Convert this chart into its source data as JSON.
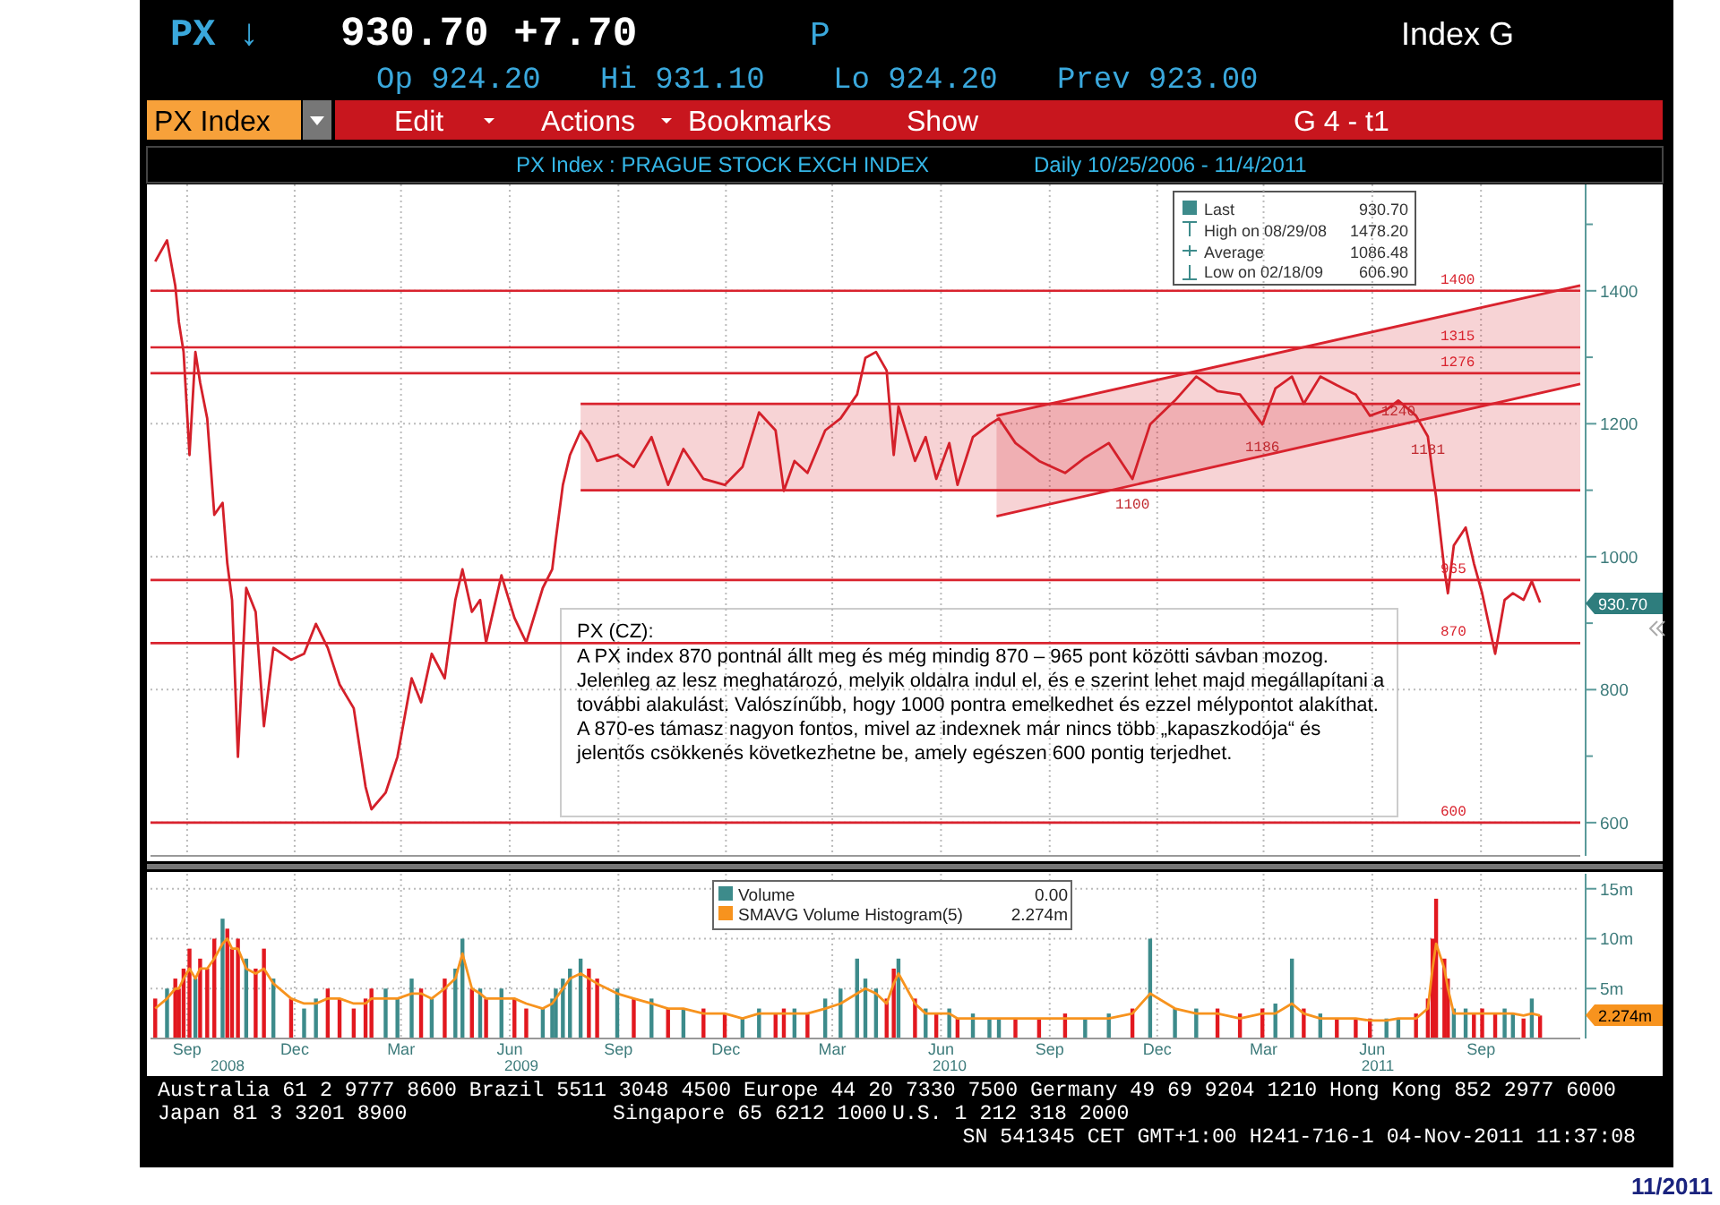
{
  "chart_data": [
    {
      "type": "line",
      "title": "PX Index  :  PRAGUE STOCK EXCH INDEX",
      "subtitle": "Daily   10/25/2006 - 11/4/2011",
      "x": [
        "2008-08-19",
        "2008-08-29",
        "2008-09-05",
        "2008-09-08",
        "2008-09-12",
        "2008-09-17",
        "2008-09-22",
        "2008-09-26",
        "2008-10-02",
        "2008-10-08",
        "2008-10-15",
        "2008-10-19",
        "2008-10-23",
        "2008-10-28",
        "2008-11-04",
        "2008-11-12",
        "2008-11-19",
        "2008-11-27",
        "2008-12-12",
        "2008-12-23",
        "2009-01-02",
        "2009-01-12",
        "2009-01-22",
        "2009-02-03",
        "2009-02-13",
        "2009-02-18",
        "2009-03-02",
        "2009-03-12",
        "2009-03-24",
        "2009-04-01",
        "2009-04-10",
        "2009-04-21",
        "2009-04-30",
        "2009-05-06",
        "2009-05-14",
        "2009-05-21",
        "2009-05-26",
        "2009-06-08",
        "2009-06-19",
        "2009-06-29",
        "2009-07-13",
        "2009-07-21",
        "2009-07-24",
        "2009-07-30",
        "2009-08-05",
        "2009-08-14",
        "2009-08-21",
        "2009-08-28",
        "2009-09-14",
        "2009-09-28",
        "2009-10-13",
        "2009-10-27",
        "2009-11-09",
        "2009-11-26",
        "2009-12-14",
        "2009-12-29",
        "2010-01-12",
        "2010-01-26",
        "2010-02-02",
        "2010-02-11",
        "2010-02-22",
        "2010-03-09",
        "2010-03-22",
        "2010-04-05",
        "2010-04-12",
        "2010-04-21",
        "2010-04-30",
        "2010-05-06",
        "2010-05-10",
        "2010-05-24",
        "2010-06-02",
        "2010-06-11",
        "2010-06-22",
        "2010-06-29",
        "2010-07-12",
        "2010-07-26",
        "2010-08-03",
        "2010-08-17",
        "2010-09-06",
        "2010-09-28",
        "2010-10-15",
        "2010-11-04",
        "2010-11-24",
        "2010-12-09",
        "2010-12-30",
        "2011-01-17",
        "2011-02-04",
        "2011-02-23",
        "2011-03-14",
        "2011-03-25",
        "2011-04-08",
        "2011-04-18",
        "2011-05-02",
        "2011-05-16",
        "2011-06-01",
        "2011-06-13",
        "2011-06-27",
        "2011-07-07",
        "2011-07-22",
        "2011-08-01",
        "2011-08-05",
        "2011-08-08",
        "2011-08-15",
        "2011-08-18",
        "2011-08-23",
        "2011-09-02",
        "2011-09-09",
        "2011-09-16",
        "2011-09-27",
        "2011-10-05",
        "2011-10-12",
        "2011-10-21",
        "2011-10-28",
        "2011-11-04"
      ],
      "series": [
        {
          "color": "#d4202a",
          "values": [
            1444,
            1476,
            1407,
            1353,
            1308,
            1153,
            1308,
            1262,
            1208,
            1063,
            1081,
            990,
            935,
            699,
            953,
            917,
            745,
            863,
            845,
            854,
            899,
            863,
            808,
            772,
            654,
            620,
            645,
            699,
            817,
            781,
            854,
            817,
            935,
            981,
            917,
            935,
            871,
            972,
            908,
            871,
            953,
            981,
            1026,
            1108,
            1153,
            1189,
            1171,
            1144,
            1153,
            1135,
            1180,
            1108,
            1162,
            1117,
            1108,
            1135,
            1217,
            1190,
            1099,
            1144,
            1126,
            1190,
            1208,
            1244,
            1299,
            1308,
            1280,
            1153,
            1226,
            1144,
            1180,
            1117,
            1171,
            1108,
            1180,
            1199,
            1208,
            1171,
            1144,
            1126,
            1149,
            1171,
            1117,
            1199,
            1235,
            1271,
            1249,
            1244,
            1199,
            1253,
            1271,
            1230,
            1271,
            1258,
            1244,
            1212,
            1221,
            1235,
            1212,
            1181,
            1126,
            1090,
            981,
            945,
            1017,
            1044,
            990,
            945,
            854,
            935,
            945,
            935,
            963,
            931
          ]
        },
        {
          "type": "line",
          "color": "#d9232e",
          "x": [
            "2009-08-14",
            "2011-12-08"
          ],
          "values": [
            1230,
            1230
          ],
          "lower": [
            1100,
            1100
          ],
          "upper": [
            1230,
            1230
          ]
        },
        {
          "type": "line",
          "color": "#d9232e",
          "x": [
            "2009-08-14",
            "2011-12-08"
          ],
          "values": [
            1100,
            1100
          ]
        },
        {
          "type": "line",
          "color": "#d9232e",
          "x": [
            "2010-08-01",
            "2011-12-08"
          ],
          "values": [
            1212,
            1408
          ],
          "lower": [
            1061,
            1260
          ],
          "upper": [
            1212,
            1408
          ]
        },
        {
          "type": "line",
          "color": "#d9232e",
          "x": [
            "2010-08-01",
            "2011-12-08"
          ],
          "values": [
            1061,
            1260
          ]
        }
      ],
      "xlim": [
        "2008-08-15",
        "2011-12-08"
      ],
      "xticks": [
        {
          "value": "2008-09-15",
          "label": null
        },
        {
          "value": "2008-12-15",
          "label": null
        },
        {
          "value": "2009-03-15",
          "label": null
        },
        {
          "value": "2009-06-15",
          "label": null
        },
        {
          "value": "2009-09-15",
          "label": null
        },
        {
          "value": "2009-12-15",
          "label": null
        },
        {
          "value": "2010-03-15",
          "label": null
        },
        {
          "value": "2010-06-15",
          "label": null
        },
        {
          "value": "2010-09-15",
          "label": null
        },
        {
          "value": "2010-12-15",
          "label": null
        },
        {
          "value": "2011-03-15",
          "label": null
        },
        {
          "value": "2011-06-15",
          "label": null
        },
        {
          "value": "2011-09-15",
          "label": null
        }
      ],
      "ylim": [
        550,
        1560
      ],
      "yticks": [
        600,
        {
          "value": 700,
          "label": null
        },
        800,
        {
          "value": 900,
          "label": null
        },
        1000,
        {
          "value": 1100,
          "label": null
        },
        1200,
        {
          "value": 1300,
          "label": null
        },
        1400,
        {
          "value": 1500,
          "label": null
        }
      ],
      "tick_labels": "y",
      "grid": true,
      "legend": false,
      "ref_lines": [
        {
          "axis": "y",
          "value": 1400,
          "label": "1400",
          "color": "#d9232e"
        },
        {
          "axis": "y",
          "value": 1315,
          "label": "1315",
          "color": "#d9232e"
        },
        {
          "axis": "y",
          "value": 1276,
          "label": "1276",
          "color": "#d9232e"
        },
        {
          "axis": "y",
          "value": 965,
          "label": "965",
          "color": "#d9232e"
        },
        {
          "axis": "y",
          "value": 870,
          "label": "870",
          "color": "#d9232e"
        },
        {
          "axis": "y",
          "value": 600,
          "label": "600",
          "color": "#d9232e"
        }
      ],
      "annotations": [
        "PX ↓",
        "930.70 +7.70",
        "P",
        "Index G",
        "Op 924.20",
        "Hi 931.10",
        "Lo 924.20",
        "Prev 923.00",
        "PX Index",
        "Edit",
        "Actions",
        "Bookmarks",
        "Show",
        "G 4 - t1",
        "Last",
        "930.70",
        "High on 08/29/08",
        "1478.20",
        "Average",
        "1086.48",
        "Low on 02/18/09",
        "606.90",
        "PX (CZ):",
        "A PX index 870 pontnál állt meg és még mindig 870 – 965 pont közötti sávban mozog. Jelenleg az lesz meghatározó, melyik oldalra indul el, és e szerint lehet majd megállapítani a további alakulást. Valószínűbb, hogy 1000 pontra emelkedhet és ezzel mélypontot alakíthat. A 870-es támasz nagyon fontos, mivel az indexnek már nincs több „kapaszkodója“ és jelentős csökkenés következhetne be, amely egészen 600 pontig terjedhet.",
        "930.70",
        {
          "text": "1240",
          "x": "2011-07-07",
          "y": 1240
        },
        {
          "text": "1186",
          "x": "2011-03-14",
          "y": 1186
        },
        {
          "text": "1181",
          "x": "2011-08-01",
          "y": 1181
        },
        {
          "text": "1100",
          "x": "2010-11-24",
          "y": 1100
        }
      ]
    },
    {
      "type": "bar",
      "x": [
        "2008-08-19",
        "2008-08-29",
        "2008-09-05",
        "2008-09-08",
        "2008-09-12",
        "2008-09-17",
        "2008-09-22",
        "2008-09-26",
        "2008-10-02",
        "2008-10-08",
        "2008-10-15",
        "2008-10-19",
        "2008-10-23",
        "2008-10-28",
        "2008-11-04",
        "2008-11-12",
        "2008-11-19",
        "2008-11-27",
        "2008-12-12",
        "2008-12-23",
        "2009-01-02",
        "2009-01-12",
        "2009-01-22",
        "2009-02-03",
        "2009-02-13",
        "2009-02-18",
        "2009-03-02",
        "2009-03-12",
        "2009-03-24",
        "2009-04-01",
        "2009-04-10",
        "2009-04-21",
        "2009-04-30",
        "2009-05-06",
        "2009-05-14",
        "2009-05-21",
        "2009-05-26",
        "2009-06-08",
        "2009-06-19",
        "2009-06-29",
        "2009-07-13",
        "2009-07-21",
        "2009-07-24",
        "2009-07-30",
        "2009-08-05",
        "2009-08-14",
        "2009-08-21",
        "2009-08-28",
        "2009-09-14",
        "2009-09-28",
        "2009-10-13",
        "2009-10-27",
        "2009-11-09",
        "2009-11-26",
        "2009-12-14",
        "2009-12-29",
        "2010-01-12",
        "2010-01-26",
        "2010-02-02",
        "2010-02-11",
        "2010-02-22",
        "2010-03-09",
        "2010-03-22",
        "2010-04-05",
        "2010-04-12",
        "2010-04-21",
        "2010-04-30",
        "2010-05-06",
        "2010-05-10",
        "2010-05-24",
        "2010-06-02",
        "2010-06-11",
        "2010-06-22",
        "2010-06-29",
        "2010-07-12",
        "2010-07-26",
        "2010-08-03",
        "2010-08-17",
        "2010-09-06",
        "2010-09-28",
        "2010-10-15",
        "2010-11-04",
        "2010-11-24",
        "2010-12-09",
        "2010-12-30",
        "2011-01-17",
        "2011-02-04",
        "2011-02-23",
        "2011-03-14",
        "2011-03-25",
        "2011-04-08",
        "2011-04-18",
        "2011-05-02",
        "2011-05-16",
        "2011-06-01",
        "2011-06-13",
        "2011-06-27",
        "2011-07-07",
        "2011-07-22",
        "2011-08-01",
        "2011-08-05",
        "2011-08-08",
        "2011-08-15",
        "2011-08-18",
        "2011-08-23",
        "2011-09-02",
        "2011-09-09",
        "2011-09-16",
        "2011-09-27",
        "2011-10-05",
        "2011-10-12",
        "2011-10-21",
        "2011-10-28",
        "2011-11-04"
      ],
      "series": [
        {
          "name": "Volume",
          "color": "#3d8b8b",
          "values": [
            4,
            5,
            6,
            5,
            7,
            9,
            6,
            8,
            7,
            10,
            12,
            11,
            9,
            10,
            8,
            7,
            9,
            6,
            4,
            3,
            4,
            5,
            4,
            3,
            4,
            5,
            5,
            4,
            6,
            5,
            4,
            6,
            7,
            10,
            5,
            5,
            4,
            5,
            4,
            3,
            3,
            4,
            5,
            6,
            7,
            8,
            7,
            6,
            5,
            4,
            4,
            3,
            3,
            3,
            2.5,
            2,
            3,
            2.5,
            3,
            3,
            2.5,
            4,
            5,
            8,
            6,
            5,
            4,
            7,
            8,
            4,
            3,
            2.5,
            3,
            2,
            2.5,
            2,
            2,
            2,
            2,
            2.5,
            2,
            2.5,
            3,
            10,
            3,
            3,
            3,
            2.5,
            3,
            3.5,
            8,
            3,
            2.5,
            2,
            2,
            2,
            2,
            2,
            2.5,
            4,
            10,
            14,
            8,
            6,
            3,
            3,
            2.5,
            3,
            2.5,
            3,
            2.5,
            2,
            4,
            2.3
          ],
          "colors": [
            "#e2181f",
            "#3d8b8b",
            "#e2181f",
            "#e2181f",
            "#e2181f",
            "#e2181f",
            "#3d8b8b",
            "#e2181f",
            "#e2181f",
            "#e2181f",
            "#3d8b8b",
            "#e2181f",
            "#e2181f",
            "#e2181f",
            "#3d8b8b",
            "#e2181f",
            "#e2181f",
            "#3d8b8b",
            "#e2181f",
            "#3d8b8b",
            "#3d8b8b",
            "#e2181f",
            "#e2181f",
            "#e2181f",
            "#e2181f",
            "#e2181f",
            "#3d8b8b",
            "#3d8b8b",
            "#3d8b8b",
            "#e2181f",
            "#3d8b8b",
            "#e2181f",
            "#3d8b8b",
            "#3d8b8b",
            "#e2181f",
            "#3d8b8b",
            "#e2181f",
            "#3d8b8b",
            "#e2181f",
            "#e2181f",
            "#3d8b8b",
            "#3d8b8b",
            "#3d8b8b",
            "#3d8b8b",
            "#3d8b8b",
            "#3d8b8b",
            "#e2181f",
            "#e2181f",
            "#3d8b8b",
            "#e2181f",
            "#3d8b8b",
            "#e2181f",
            "#3d8b8b",
            "#e2181f",
            "#e2181f",
            "#3d8b8b",
            "#3d8b8b",
            "#e2181f",
            "#e2181f",
            "#3d8b8b",
            "#e2181f",
            "#3d8b8b",
            "#3d8b8b",
            "#3d8b8b",
            "#3d8b8b",
            "#3d8b8b",
            "#e2181f",
            "#e2181f",
            "#3d8b8b",
            "#e2181f",
            "#3d8b8b",
            "#e2181f",
            "#3d8b8b",
            "#e2181f",
            "#3d8b8b",
            "#3d8b8b",
            "#3d8b8b",
            "#e2181f",
            "#e2181f",
            "#e2181f",
            "#3d8b8b",
            "#3d8b8b",
            "#e2181f",
            "#3d8b8b",
            "#3d8b8b",
            "#3d8b8b",
            "#e2181f",
            "#e2181f",
            "#e2181f",
            "#3d8b8b",
            "#3d8b8b",
            "#e2181f",
            "#3d8b8b",
            "#e2181f",
            "#e2181f",
            "#e2181f",
            "#3d8b8b",
            "#3d8b8b",
            "#e2181f",
            "#e2181f",
            "#e2181f",
            "#e2181f",
            "#e2181f",
            "#e2181f",
            "#3d8b8b",
            "#3d8b8b",
            "#e2181f",
            "#e2181f",
            "#e2181f",
            "#3d8b8b",
            "#3d8b8b",
            "#e2181f",
            "#3d8b8b",
            "#e2181f"
          ]
        },
        {
          "type": "line",
          "name": "SMAVG Volume Histogram(5)",
          "color": "#f7931e",
          "values": [
            3,
            4,
            5,
            5,
            6,
            7,
            6,
            7,
            7,
            8,
            9.5,
            10,
            9,
            9,
            7,
            6.5,
            7,
            5.5,
            4,
            3.5,
            3.5,
            4,
            4,
            3.5,
            3.5,
            4,
            4,
            4,
            4.5,
            4.5,
            4,
            5,
            6,
            8.5,
            5,
            4.5,
            4,
            4,
            4,
            3.5,
            3,
            3.5,
            4,
            5,
            6,
            6.5,
            6,
            5.5,
            4.5,
            4,
            3.5,
            3,
            3,
            2.5,
            2.5,
            2,
            2.5,
            2.5,
            2.5,
            2.5,
            2.5,
            3,
            3.5,
            4.5,
            5,
            4.5,
            3.5,
            5.5,
            6.5,
            3.5,
            2.5,
            2.5,
            2.5,
            2,
            2,
            2,
            2,
            2,
            2,
            2,
            2,
            2,
            2.5,
            4.5,
            3,
            2.5,
            2.5,
            2,
            2.5,
            2.5,
            3.5,
            2.5,
            2,
            2,
            2,
            1.8,
            1.8,
            2,
            2,
            3,
            7,
            9.5,
            7,
            5,
            2.5,
            2.5,
            2.5,
            2.5,
            2.5,
            2.5,
            2.5,
            2.3,
            2.5,
            2.3
          ]
        }
      ],
      "xlim": [
        "2008-08-15",
        "2011-12-08"
      ],
      "xticks": [
        {
          "value": "2008-09-15",
          "label": "Sep"
        },
        {
          "value": "2008-12-15",
          "label": "Dec"
        },
        {
          "value": "2009-03-15",
          "label": "Mar"
        },
        {
          "value": "2009-06-15",
          "label": "Jun"
        },
        {
          "value": "2009-09-15",
          "label": "Sep"
        },
        {
          "value": "2009-12-15",
          "label": "Dec"
        },
        {
          "value": "2010-03-15",
          "label": "Mar"
        },
        {
          "value": "2010-06-15",
          "label": "Jun"
        },
        {
          "value": "2010-09-15",
          "label": "Sep"
        },
        {
          "value": "2010-12-15",
          "label": "Dec"
        },
        {
          "value": "2011-03-15",
          "label": "Mar"
        },
        {
          "value": "2011-06-15",
          "label": "Jun"
        },
        {
          "value": "2011-09-15",
          "label": "Sep"
        }
      ],
      "ylim": [
        0,
        16.5
      ],
      "yticks": [
        {
          "value": 5,
          "label": "5m"
        },
        {
          "value": 10,
          "label": "10m"
        },
        {
          "value": 15,
          "label": "15m"
        }
      ],
      "grid": true,
      "legend": "top",
      "annotations": [
        "0.00",
        "2.274m",
        "2.274m",
        "2008",
        "2009",
        "2010",
        "2011",
        "Australia 61 2 9777 8600 Brazil 5511 3048 4500 Europe 44 20 7330 7500 Germany 49 69 9204 1210 Hong Kong 852 2977 6000",
        "Japan 81 3 3201 8900",
        "Singapore 65 6212 1000",
        "U.S. 1 212 318 2000",
        "SN 541345 CET  GMT+1:00 H241-716-1 04-Nov-2011 11:37:08",
        "11/2011"
      ]
    }
  ]
}
